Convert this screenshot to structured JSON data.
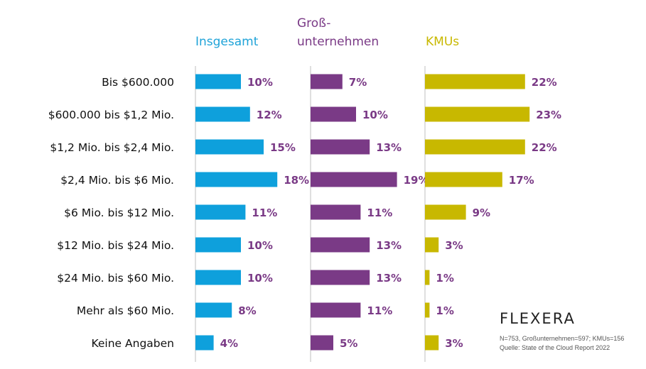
{
  "chart_data": {
    "type": "bar",
    "orientation": "horizontal",
    "categories": [
      "Bis $600.000",
      "$600.000 bis $1,2 Mio.",
      "$1,2 Mio. bis $2,4 Mio.",
      "$2,4 Mio. bis $6 Mio.",
      "$6 Mio. bis $12 Mio.",
      "$12 Mio. bis $24 Mio.",
      "$24 Mio. bis $60 Mio.",
      "Mehr als $60 Mio.",
      "Keine Angaben"
    ],
    "series": [
      {
        "name_lines": [
          "Insgesamt"
        ],
        "color": "#0ea0dc",
        "label_color": "#7a3a86",
        "values": [
          10,
          12,
          15,
          18,
          11,
          10,
          10,
          8,
          4
        ],
        "labels": [
          "10%",
          "12%",
          "15%",
          "18%",
          "11%",
          "10%",
          "10%",
          "8%",
          "4%"
        ]
      },
      {
        "name_lines": [
          "Groß-",
          "unternehmen"
        ],
        "color": "#7a3a86",
        "label_color": "#7a3a86",
        "values": [
          7,
          10,
          13,
          19,
          11,
          13,
          13,
          11,
          5
        ],
        "labels": [
          "7%",
          "10%",
          "13%",
          "19%",
          "11%",
          "13%",
          "13%",
          "11%",
          "5%"
        ]
      },
      {
        "name_lines": [
          "KMUs"
        ],
        "color": "#c8b800",
        "label_color": "#7a3a86",
        "values": [
          22,
          23,
          22,
          17,
          9,
          3,
          1,
          1,
          3
        ],
        "labels": [
          "22%",
          "23%",
          "22%",
          "17%",
          "9%",
          "3%",
          "1%",
          "1%",
          "3%"
        ]
      }
    ],
    "series_title_colors": [
      "#1fa3d8",
      "#7a3a86",
      "#c8b800"
    ],
    "axis_color": "#bfbfbf",
    "value_max": 25
  },
  "branding": {
    "logo": "FLEXERA",
    "note_sample": "N=753, Großunternehmen=597; KMUs=156",
    "note_source": "Quelle: State of the Cloud Report 2022"
  }
}
